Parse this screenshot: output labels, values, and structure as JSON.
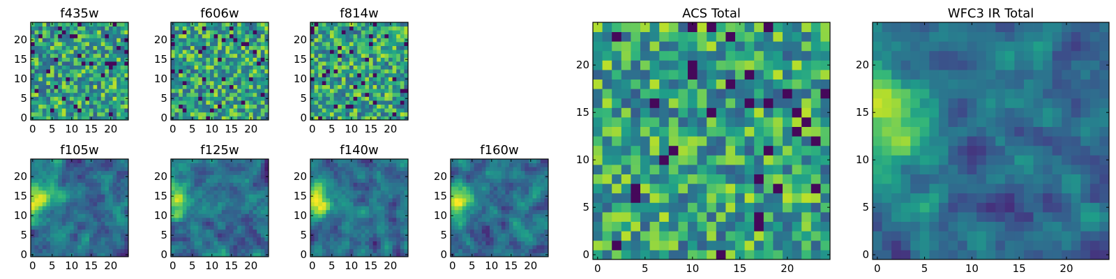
{
  "colormap": "viridis",
  "chart_data": [
    {
      "type": "heatmap",
      "title": "f435w",
      "grid_size": 25,
      "texture": "noise",
      "seed": 11,
      "xticks": [
        "0",
        "5",
        "10",
        "15",
        "20"
      ],
      "yticks": [
        "0",
        "5",
        "10",
        "15",
        "20"
      ],
      "xlim": [
        -0.5,
        24.5
      ],
      "ylim": [
        -0.5,
        24.5
      ]
    },
    {
      "type": "heatmap",
      "title": "f606w",
      "grid_size": 25,
      "texture": "noise",
      "seed": 23,
      "xticks": [
        "0",
        "5",
        "10",
        "15",
        "20"
      ],
      "yticks": [
        "0",
        "5",
        "10",
        "15",
        "20"
      ],
      "xlim": [
        -0.5,
        24.5
      ],
      "ylim": [
        -0.5,
        24.5
      ]
    },
    {
      "type": "heatmap",
      "title": "f814w",
      "grid_size": 25,
      "texture": "noise",
      "seed": 37,
      "xticks": [
        "0",
        "5",
        "10",
        "15",
        "20"
      ],
      "yticks": [
        "0",
        "5",
        "10",
        "15",
        "20"
      ],
      "xlim": [
        -0.5,
        24.5
      ],
      "ylim": [
        -0.5,
        24.5
      ]
    },
    {
      "type": "heatmap",
      "title": "f105w",
      "grid_size": 25,
      "texture": "smooth",
      "seed": 41,
      "xticks": [
        "0",
        "5",
        "10",
        "15",
        "20"
      ],
      "yticks": [
        "0",
        "5",
        "10",
        "15",
        "20"
      ],
      "xlim": [
        -0.5,
        24.5
      ],
      "ylim": [
        -0.5,
        24.5
      ]
    },
    {
      "type": "heatmap",
      "title": "f125w",
      "grid_size": 25,
      "texture": "smooth",
      "seed": 53,
      "xticks": [
        "0",
        "5",
        "10",
        "15",
        "20"
      ],
      "yticks": [
        "0",
        "5",
        "10",
        "15",
        "20"
      ],
      "xlim": [
        -0.5,
        24.5
      ],
      "ylim": [
        -0.5,
        24.5
      ]
    },
    {
      "type": "heatmap",
      "title": "f140w",
      "grid_size": 25,
      "texture": "smooth",
      "seed": 67,
      "xticks": [
        "0",
        "5",
        "10",
        "15",
        "20"
      ],
      "yticks": [
        "0",
        "5",
        "10",
        "15",
        "20"
      ],
      "xlim": [
        -0.5,
        24.5
      ],
      "ylim": [
        -0.5,
        24.5
      ]
    },
    {
      "type": "heatmap",
      "title": "f160w",
      "grid_size": 25,
      "texture": "smooth",
      "seed": 79,
      "xticks": [
        "0",
        "5",
        "10",
        "15",
        "20"
      ],
      "yticks": [
        "0",
        "5",
        "10",
        "15",
        "20"
      ],
      "xlim": [
        -0.5,
        24.5
      ],
      "ylim": [
        -0.5,
        24.5
      ]
    },
    {
      "type": "heatmap",
      "title": "ACS Total",
      "grid_size": 25,
      "texture": "noise",
      "seed": 97,
      "xticks": [
        "0",
        "5",
        "10",
        "15",
        "20"
      ],
      "yticks": [
        "0",
        "5",
        "10",
        "15",
        "20"
      ],
      "xlim": [
        -0.5,
        24.5
      ],
      "ylim": [
        -0.5,
        24.5
      ]
    },
    {
      "type": "heatmap",
      "title": "WFC3 IR Total",
      "grid_size": 25,
      "texture": "smooth",
      "seed": 131,
      "xticks": [
        "0",
        "5",
        "10",
        "15",
        "20"
      ],
      "yticks": [
        "0",
        "5",
        "10",
        "15",
        "20"
      ],
      "xlim": [
        -0.5,
        24.5
      ],
      "ylim": [
        -0.5,
        24.5
      ]
    }
  ]
}
